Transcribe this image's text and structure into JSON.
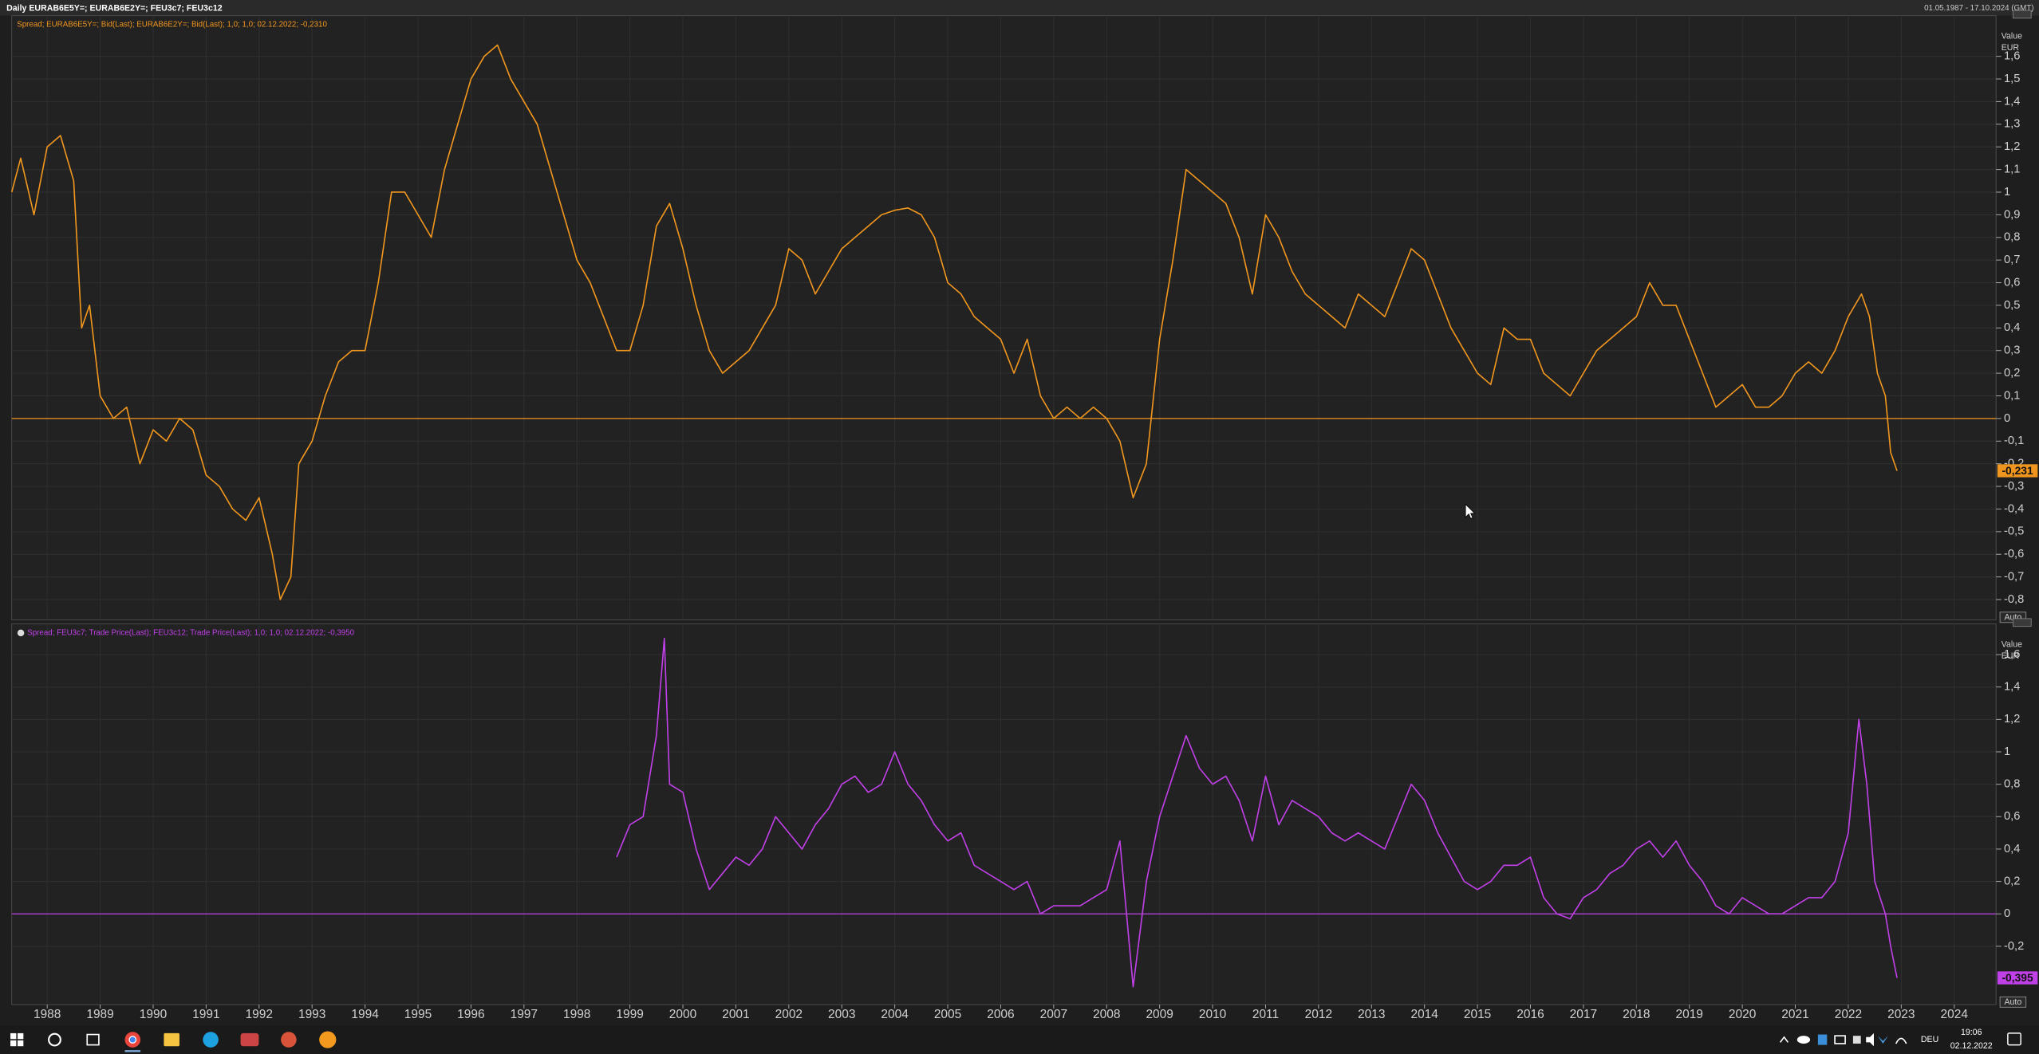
{
  "header": {
    "title": "Daily EURAB6E5Y=; EURAB6E2Y=; FEU3c7; FEU3c12",
    "range": "01.05.1987 - 17.10.2024 (GMT)"
  },
  "chart_data": [
    {
      "type": "line",
      "ylabel": "Value",
      "yunit": "EUR",
      "scale_mode": "Auto",
      "xlim": [
        1987.33,
        2024.79
      ],
      "ylim": [
        -0.89,
        1.78
      ],
      "yticks": [
        {
          "value": -0.8,
          "label": "-0,8"
        },
        {
          "value": -0.7,
          "label": "-0,7"
        },
        {
          "value": -0.6,
          "label": "-0,6"
        },
        {
          "value": -0.5,
          "label": "-0,5"
        },
        {
          "value": -0.4,
          "label": "-0,4"
        },
        {
          "value": -0.3,
          "label": "-0,3"
        },
        {
          "value": -0.2,
          "label": "-0,2"
        },
        {
          "value": -0.1,
          "label": "-0,1"
        },
        0,
        {
          "value": 0.1,
          "label": "0,1"
        },
        {
          "value": 0.2,
          "label": "0,2"
        },
        {
          "value": 0.3,
          "label": "0,3"
        },
        {
          "value": 0.4,
          "label": "0,4"
        },
        {
          "value": 0.5,
          "label": "0,5"
        },
        {
          "value": 0.6,
          "label": "0,6"
        },
        {
          "value": 0.7,
          "label": "0,7"
        },
        {
          "value": 0.8,
          "label": "0,8"
        },
        {
          "value": 0.9,
          "label": "0,9"
        },
        1,
        {
          "value": 1.1,
          "label": "1,1"
        },
        {
          "value": 1.2,
          "label": "1,2"
        },
        {
          "value": 1.3,
          "label": "1,3"
        },
        {
          "value": 1.4,
          "label": "1,4"
        },
        {
          "value": 1.5,
          "label": "1,5"
        },
        {
          "value": 1.6,
          "label": "1,6"
        }
      ],
      "grid": true,
      "x": [
        1987.33,
        1987.5,
        1987.75,
        1988.0,
        1988.25,
        1988.5,
        1988.65,
        1988.8,
        1989.0,
        1989.25,
        1989.5,
        1989.75,
        1990.0,
        1990.25,
        1990.5,
        1990.75,
        1991.0,
        1991.25,
        1991.5,
        1991.75,
        1992.0,
        1992.25,
        1992.4,
        1992.6,
        1992.75,
        1993.0,
        1993.25,
        1993.5,
        1993.75,
        1994.0,
        1994.25,
        1994.5,
        1994.75,
        1995.0,
        1995.25,
        1995.5,
        1995.75,
        1996.0,
        1996.25,
        1996.5,
        1996.75,
        1997.0,
        1997.25,
        1997.5,
        1997.75,
        1998.0,
        1998.25,
        1998.5,
        1998.75,
        1999.0,
        1999.25,
        1999.5,
        1999.75,
        2000.0,
        2000.25,
        2000.5,
        2000.75,
        2001.0,
        2001.25,
        2001.5,
        2001.75,
        2002.0,
        2002.25,
        2002.5,
        2002.75,
        2003.0,
        2003.25,
        2003.5,
        2003.75,
        2004.0,
        2004.25,
        2004.5,
        2004.75,
        2005.0,
        2005.25,
        2005.5,
        2005.75,
        2006.0,
        2006.25,
        2006.5,
        2006.75,
        2007.0,
        2007.25,
        2007.5,
        2007.75,
        2008.0,
        2008.25,
        2008.5,
        2008.75,
        2009.0,
        2009.25,
        2009.5,
        2009.75,
        2010.0,
        2010.25,
        2010.5,
        2010.75,
        2011.0,
        2011.25,
        2011.5,
        2011.75,
        2012.0,
        2012.25,
        2012.5,
        2012.75,
        2013.0,
        2013.25,
        2013.5,
        2013.75,
        2014.0,
        2014.25,
        2014.5,
        2014.75,
        2015.0,
        2015.25,
        2015.5,
        2015.75,
        2016.0,
        2016.25,
        2016.5,
        2016.75,
        2017.0,
        2017.25,
        2017.5,
        2017.75,
        2018.0,
        2018.25,
        2018.5,
        2018.75,
        2019.0,
        2019.25,
        2019.5,
        2019.75,
        2020.0,
        2020.25,
        2020.5,
        2020.75,
        2021.0,
        2021.25,
        2021.5,
        2021.75,
        2022.0,
        2022.25,
        2022.4,
        2022.55,
        2022.7,
        2022.8,
        2022.92
      ],
      "series": [
        {
          "name": "Spread; EURAB6E5Y=; Bid(Last); EURAB6E2Y=; Bid(Last);  1,0; 1,0; 02.12.2022; -0,2310",
          "color": "#f0961e",
          "last_value_label": "-0,231",
          "values": [
            1.0,
            1.15,
            0.9,
            1.2,
            1.25,
            1.05,
            0.4,
            0.5,
            0.1,
            0.0,
            0.05,
            -0.2,
            -0.05,
            -0.1,
            0.0,
            -0.05,
            -0.25,
            -0.3,
            -0.4,
            -0.45,
            -0.35,
            -0.6,
            -0.8,
            -0.7,
            -0.2,
            -0.1,
            0.1,
            0.25,
            0.3,
            0.3,
            0.6,
            1.0,
            1.0,
            0.9,
            0.8,
            1.1,
            1.3,
            1.5,
            1.6,
            1.65,
            1.5,
            1.4,
            1.3,
            1.1,
            0.9,
            0.7,
            0.6,
            0.45,
            0.3,
            0.3,
            0.5,
            0.85,
            0.95,
            0.75,
            0.5,
            0.3,
            0.2,
            0.25,
            0.3,
            0.4,
            0.5,
            0.75,
            0.7,
            0.55,
            0.65,
            0.75,
            0.8,
            0.85,
            0.9,
            0.92,
            0.93,
            0.9,
            0.8,
            0.6,
            0.55,
            0.45,
            0.4,
            0.35,
            0.2,
            0.35,
            0.1,
            0.0,
            0.05,
            0.0,
            0.05,
            0.0,
            -0.1,
            -0.35,
            -0.2,
            0.35,
            0.7,
            1.1,
            1.05,
            1.0,
            0.95,
            0.8,
            0.55,
            0.9,
            0.8,
            0.65,
            0.55,
            0.5,
            0.45,
            0.4,
            0.55,
            0.5,
            0.45,
            0.6,
            0.75,
            0.7,
            0.55,
            0.4,
            0.3,
            0.2,
            0.15,
            0.4,
            0.35,
            0.35,
            0.2,
            0.15,
            0.1,
            0.2,
            0.3,
            0.35,
            0.4,
            0.45,
            0.6,
            0.5,
            0.5,
            0.35,
            0.2,
            0.05,
            0.1,
            0.15,
            0.05,
            0.05,
            0.1,
            0.2,
            0.25,
            0.2,
            0.3,
            0.45,
            0.55,
            0.45,
            0.2,
            0.1,
            -0.15,
            -0.231
          ]
        }
      ]
    },
    {
      "type": "line",
      "ylabel": "Value",
      "yunit": "EUR",
      "scale_mode": "Auto",
      "xlim": [
        1987.33,
        2024.79
      ],
      "xticks": [
        1988,
        1989,
        1990,
        1991,
        1992,
        1993,
        1994,
        1995,
        1996,
        1997,
        1998,
        1999,
        2000,
        2001,
        2002,
        2003,
        2004,
        2005,
        2006,
        2007,
        2008,
        2009,
        2010,
        2011,
        2012,
        2013,
        2014,
        2015,
        2016,
        2017,
        2018,
        2019,
        2020,
        2021,
        2022,
        2023,
        2024
      ],
      "ylim": [
        -0.56,
        1.79
      ],
      "yticks": [
        {
          "value": -0.2,
          "label": "-0,2"
        },
        0,
        {
          "value": 0.2,
          "label": "0,2"
        },
        {
          "value": 0.4,
          "label": "0,4"
        },
        {
          "value": 0.6,
          "label": "0,6"
        },
        {
          "value": 0.8,
          "label": "0,8"
        },
        1,
        {
          "value": 1.2,
          "label": "1,2"
        },
        {
          "value": 1.4,
          "label": "1,4"
        },
        {
          "value": 1.6,
          "label": "1,6"
        }
      ],
      "grid": true,
      "x": [
        1998.75,
        1999.0,
        1999.25,
        1999.5,
        1999.65,
        1999.75,
        2000.0,
        2000.25,
        2000.5,
        2000.75,
        2001.0,
        2001.25,
        2001.5,
        2001.75,
        2002.0,
        2002.25,
        2002.5,
        2002.75,
        2003.0,
        2003.25,
        2003.5,
        2003.75,
        2004.0,
        2004.25,
        2004.5,
        2004.75,
        2005.0,
        2005.25,
        2005.5,
        2005.75,
        2006.0,
        2006.25,
        2006.5,
        2006.75,
        2007.0,
        2007.25,
        2007.5,
        2007.75,
        2008.0,
        2008.25,
        2008.5,
        2008.75,
        2009.0,
        2009.25,
        2009.5,
        2009.75,
        2010.0,
        2010.25,
        2010.5,
        2010.75,
        2011.0,
        2011.25,
        2011.5,
        2011.75,
        2012.0,
        2012.25,
        2012.5,
        2012.75,
        2013.0,
        2013.25,
        2013.5,
        2013.75,
        2014.0,
        2014.25,
        2014.5,
        2014.75,
        2015.0,
        2015.25,
        2015.5,
        2015.75,
        2016.0,
        2016.25,
        2016.5,
        2016.75,
        2017.0,
        2017.25,
        2017.5,
        2017.75,
        2018.0,
        2018.25,
        2018.5,
        2018.75,
        2019.0,
        2019.25,
        2019.5,
        2019.75,
        2020.0,
        2020.25,
        2020.5,
        2020.75,
        2021.0,
        2021.25,
        2021.5,
        2021.75,
        2022.0,
        2022.2,
        2022.35,
        2022.5,
        2022.7,
        2022.8,
        2022.92
      ],
      "series": [
        {
          "name": "Spread; FEU3c7; Trade Price(Last); FEU3c12; Trade Price(Last);  1,0; 1,0; 02.12.2022; -0,3950",
          "color": "#c040e8",
          "last_value_label": "-0,395",
          "values": [
            0.35,
            0.55,
            0.6,
            1.1,
            1.7,
            0.8,
            0.75,
            0.4,
            0.15,
            0.25,
            0.35,
            0.3,
            0.4,
            0.6,
            0.5,
            0.4,
            0.55,
            0.65,
            0.8,
            0.85,
            0.75,
            0.8,
            1.0,
            0.8,
            0.7,
            0.55,
            0.45,
            0.5,
            0.3,
            0.25,
            0.2,
            0.15,
            0.2,
            0.0,
            0.05,
            0.05,
            0.05,
            0.1,
            0.15,
            0.45,
            -0.45,
            0.2,
            0.6,
            0.85,
            1.1,
            0.9,
            0.8,
            0.85,
            0.7,
            0.45,
            0.85,
            0.55,
            0.7,
            0.65,
            0.6,
            0.5,
            0.45,
            0.5,
            0.45,
            0.4,
            0.6,
            0.8,
            0.7,
            0.5,
            0.35,
            0.2,
            0.15,
            0.2,
            0.3,
            0.3,
            0.35,
            0.1,
            0.0,
            -0.03,
            0.1,
            0.15,
            0.25,
            0.3,
            0.4,
            0.45,
            0.35,
            0.45,
            0.3,
            0.2,
            0.05,
            0.0,
            0.1,
            0.05,
            0.0,
            0.0,
            0.05,
            0.1,
            0.1,
            0.2,
            0.5,
            1.2,
            0.8,
            0.2,
            0.0,
            -0.2,
            -0.395
          ]
        }
      ]
    }
  ],
  "taskbar": {
    "language": "DEU",
    "time": "19:06",
    "date": "02.12.2022"
  }
}
